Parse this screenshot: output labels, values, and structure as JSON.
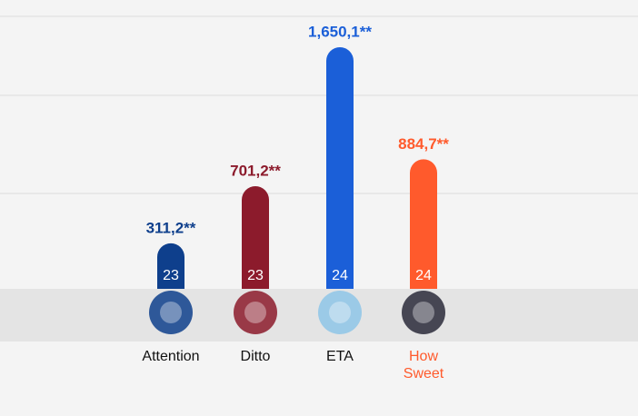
{
  "chart_data": {
    "type": "bar",
    "categories": [
      "Attention",
      "Ditto",
      "ETA",
      "How Sweet"
    ],
    "values": [
      311.2,
      701.2,
      1650.1,
      884.7
    ],
    "value_labels": [
      "311,2**",
      "701,2**",
      "1,650,1**",
      "884,7**"
    ],
    "inner_labels": [
      "23",
      "23",
      "24",
      "24"
    ],
    "colors": [
      "#0e3f8c",
      "#8c1b2c",
      "#1b5fd8",
      "#ff5a2c"
    ],
    "label_colors": [
      "#111111",
      "#111111",
      "#111111",
      "#ff5a2c"
    ],
    "ylim": [
      0,
      1861
    ]
  }
}
